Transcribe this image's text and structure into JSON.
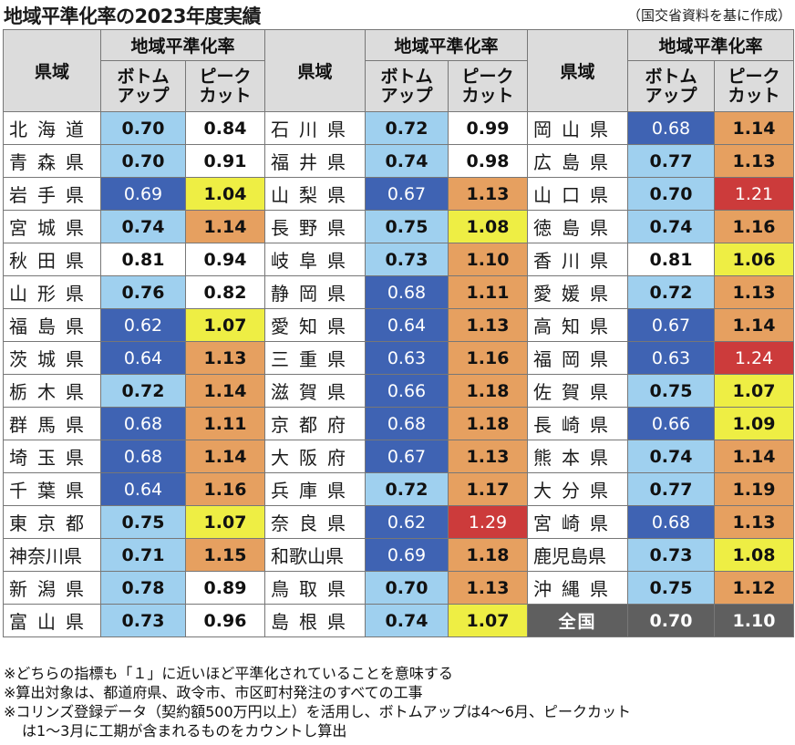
{
  "title": "地域平準化率の2023年度実績",
  "source": "（国交省資料を基に作成）",
  "headers": {
    "prefecture": "県域",
    "group": "地域平準化率",
    "bottom_up_line1": "ボトム",
    "bottom_up_line2": "アップ",
    "peak_cut_line1": "ピーク",
    "peak_cut_line2": "カット"
  },
  "colors": {
    "white": "#ffffff",
    "light_blue": "#9fd0ef",
    "dark_blue": "#3f63b3",
    "yellow": "#eeee44",
    "orange": "#e6a060",
    "red": "#cc3b3b",
    "header_gray": "#dcdcdc",
    "total_gray": "#5f5f5f"
  },
  "rows": [
    [
      {
        "name": "北海道",
        "bu": "0.70",
        "buc": "light_blue",
        "pc": "0.84",
        "pcc": "white"
      },
      {
        "name": "石川県",
        "bu": "0.72",
        "buc": "light_blue",
        "pc": "0.99",
        "pcc": "white"
      },
      {
        "name": "岡山県",
        "bu": "0.68",
        "buc": "dark_blue",
        "pc": "1.14",
        "pcc": "orange"
      }
    ],
    [
      {
        "name": "青森県",
        "bu": "0.70",
        "buc": "light_blue",
        "pc": "0.91",
        "pcc": "white"
      },
      {
        "name": "福井県",
        "bu": "0.74",
        "buc": "light_blue",
        "pc": "0.98",
        "pcc": "white"
      },
      {
        "name": "広島県",
        "bu": "0.77",
        "buc": "light_blue",
        "pc": "1.13",
        "pcc": "orange"
      }
    ],
    [
      {
        "name": "岩手県",
        "bu": "0.69",
        "buc": "dark_blue",
        "pc": "1.04",
        "pcc": "yellow"
      },
      {
        "name": "山梨県",
        "bu": "0.67",
        "buc": "dark_blue",
        "pc": "1.13",
        "pcc": "orange"
      },
      {
        "name": "山口県",
        "bu": "0.70",
        "buc": "light_blue",
        "pc": "1.21",
        "pcc": "red"
      }
    ],
    [
      {
        "name": "宮城県",
        "bu": "0.74",
        "buc": "light_blue",
        "pc": "1.14",
        "pcc": "orange"
      },
      {
        "name": "長野県",
        "bu": "0.75",
        "buc": "light_blue",
        "pc": "1.08",
        "pcc": "yellow"
      },
      {
        "name": "徳島県",
        "bu": "0.74",
        "buc": "light_blue",
        "pc": "1.16",
        "pcc": "orange"
      }
    ],
    [
      {
        "name": "秋田県",
        "bu": "0.81",
        "buc": "white",
        "pc": "0.94",
        "pcc": "white"
      },
      {
        "name": "岐阜県",
        "bu": "0.73",
        "buc": "light_blue",
        "pc": "1.10",
        "pcc": "orange"
      },
      {
        "name": "香川県",
        "bu": "0.81",
        "buc": "white",
        "pc": "1.06",
        "pcc": "yellow"
      }
    ],
    [
      {
        "name": "山形県",
        "bu": "0.76",
        "buc": "light_blue",
        "pc": "0.82",
        "pcc": "white"
      },
      {
        "name": "静岡県",
        "bu": "0.68",
        "buc": "dark_blue",
        "pc": "1.11",
        "pcc": "orange"
      },
      {
        "name": "愛媛県",
        "bu": "0.72",
        "buc": "light_blue",
        "pc": "1.13",
        "pcc": "orange"
      }
    ],
    [
      {
        "name": "福島県",
        "bu": "0.62",
        "buc": "dark_blue",
        "pc": "1.07",
        "pcc": "yellow"
      },
      {
        "name": "愛知県",
        "bu": "0.64",
        "buc": "dark_blue",
        "pc": "1.13",
        "pcc": "orange"
      },
      {
        "name": "高知県",
        "bu": "0.67",
        "buc": "dark_blue",
        "pc": "1.14",
        "pcc": "orange"
      }
    ],
    [
      {
        "name": "茨城県",
        "bu": "0.64",
        "buc": "dark_blue",
        "pc": "1.13",
        "pcc": "orange"
      },
      {
        "name": "三重県",
        "bu": "0.63",
        "buc": "dark_blue",
        "pc": "1.16",
        "pcc": "orange"
      },
      {
        "name": "福岡県",
        "bu": "0.63",
        "buc": "dark_blue",
        "pc": "1.24",
        "pcc": "red"
      }
    ],
    [
      {
        "name": "栃木県",
        "bu": "0.72",
        "buc": "light_blue",
        "pc": "1.14",
        "pcc": "orange"
      },
      {
        "name": "滋賀県",
        "bu": "0.66",
        "buc": "dark_blue",
        "pc": "1.18",
        "pcc": "orange"
      },
      {
        "name": "佐賀県",
        "bu": "0.75",
        "buc": "light_blue",
        "pc": "1.07",
        "pcc": "yellow"
      }
    ],
    [
      {
        "name": "群馬県",
        "bu": "0.68",
        "buc": "dark_blue",
        "pc": "1.11",
        "pcc": "orange"
      },
      {
        "name": "京都府",
        "bu": "0.68",
        "buc": "dark_blue",
        "pc": "1.18",
        "pcc": "orange"
      },
      {
        "name": "長崎県",
        "bu": "0.66",
        "buc": "dark_blue",
        "pc": "1.09",
        "pcc": "yellow"
      }
    ],
    [
      {
        "name": "埼玉県",
        "bu": "0.68",
        "buc": "dark_blue",
        "pc": "1.14",
        "pcc": "orange"
      },
      {
        "name": "大阪府",
        "bu": "0.67",
        "buc": "dark_blue",
        "pc": "1.13",
        "pcc": "orange"
      },
      {
        "name": "熊本県",
        "bu": "0.74",
        "buc": "light_blue",
        "pc": "1.14",
        "pcc": "orange"
      }
    ],
    [
      {
        "name": "千葉県",
        "bu": "0.64",
        "buc": "dark_blue",
        "pc": "1.16",
        "pcc": "orange"
      },
      {
        "name": "兵庫県",
        "bu": "0.72",
        "buc": "light_blue",
        "pc": "1.17",
        "pcc": "orange"
      },
      {
        "name": "大分県",
        "bu": "0.77",
        "buc": "light_blue",
        "pc": "1.19",
        "pcc": "orange"
      }
    ],
    [
      {
        "name": "東京都",
        "bu": "0.75",
        "buc": "light_blue",
        "pc": "1.07",
        "pcc": "yellow"
      },
      {
        "name": "奈良県",
        "bu": "0.62",
        "buc": "dark_blue",
        "pc": "1.29",
        "pcc": "red"
      },
      {
        "name": "宮崎県",
        "bu": "0.68",
        "buc": "dark_blue",
        "pc": "1.13",
        "pcc": "orange"
      }
    ],
    [
      {
        "name": "神奈川県",
        "bu": "0.71",
        "buc": "light_blue",
        "pc": "1.15",
        "pcc": "orange"
      },
      {
        "name": "和歌山県",
        "bu": "0.69",
        "buc": "dark_blue",
        "pc": "1.18",
        "pcc": "orange"
      },
      {
        "name": "鹿児島県",
        "bu": "0.73",
        "buc": "light_blue",
        "pc": "1.08",
        "pcc": "yellow"
      }
    ],
    [
      {
        "name": "新潟県",
        "bu": "0.78",
        "buc": "light_blue",
        "pc": "0.89",
        "pcc": "white"
      },
      {
        "name": "鳥取県",
        "bu": "0.70",
        "buc": "light_blue",
        "pc": "1.13",
        "pcc": "orange"
      },
      {
        "name": "沖縄県",
        "bu": "0.75",
        "buc": "light_blue",
        "pc": "1.12",
        "pcc": "orange"
      }
    ],
    [
      {
        "name": "富山県",
        "bu": "0.73",
        "buc": "light_blue",
        "pc": "0.96",
        "pcc": "white"
      },
      {
        "name": "島根県",
        "bu": "0.74",
        "buc": "light_blue",
        "pc": "1.07",
        "pcc": "yellow"
      },
      {
        "name": "全国",
        "bu": "0.70",
        "buc": "total",
        "pc": "1.10",
        "pcc": "total",
        "is_total": true
      }
    ]
  ],
  "notes": [
    "※どちらの指標も「１」に近いほど平準化されていることを意味する",
    "※算出対象は、都道府県、政令市、市区町村発注のすべての工事",
    "※コリンズ登録データ（契約額500万円以上）を活用し、ボトムアップは4～6月、ピークカット",
    "は1～3月に工期が含まれるものをカウントし算出"
  ]
}
